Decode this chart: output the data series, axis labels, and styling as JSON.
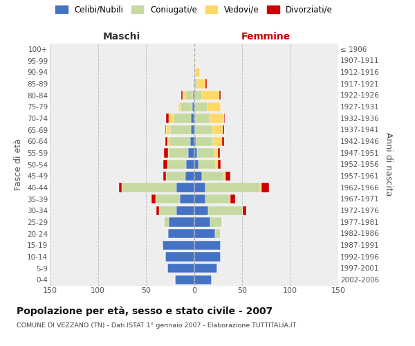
{
  "age_groups": [
    "0-4",
    "5-9",
    "10-14",
    "15-19",
    "20-24",
    "25-29",
    "30-34",
    "35-39",
    "40-44",
    "45-49",
    "50-54",
    "55-59",
    "60-64",
    "65-69",
    "70-74",
    "75-79",
    "80-84",
    "85-89",
    "90-94",
    "95-99",
    "100+"
  ],
  "birth_years": [
    "2002-2006",
    "1997-2001",
    "1992-1996",
    "1987-1991",
    "1982-1986",
    "1977-1981",
    "1972-1976",
    "1967-1971",
    "1962-1966",
    "1957-1961",
    "1952-1956",
    "1947-1951",
    "1942-1946",
    "1937-1941",
    "1932-1936",
    "1927-1931",
    "1922-1926",
    "1917-1921",
    "1912-1916",
    "1907-1911",
    "≤ 1906"
  ],
  "maschi_celibi": [
    20,
    28,
    30,
    33,
    27,
    26,
    18,
    15,
    18,
    9,
    8,
    6,
    4,
    3,
    3,
    2,
    1,
    0,
    0,
    0,
    0
  ],
  "maschi_coniugati": [
    0,
    0,
    0,
    0,
    1,
    5,
    18,
    25,
    57,
    20,
    20,
    20,
    22,
    22,
    18,
    12,
    8,
    1,
    0,
    0,
    0
  ],
  "maschi_vedovi": [
    0,
    0,
    0,
    0,
    0,
    0,
    0,
    0,
    0,
    0,
    0,
    1,
    2,
    4,
    5,
    2,
    3,
    0,
    0,
    0,
    0
  ],
  "maschi_divorziati": [
    0,
    0,
    0,
    0,
    0,
    0,
    3,
    4,
    3,
    3,
    4,
    4,
    2,
    1,
    3,
    0,
    1,
    0,
    0,
    0,
    0
  ],
  "femmine_nubili": [
    18,
    24,
    28,
    28,
    22,
    17,
    15,
    12,
    12,
    8,
    5,
    3,
    2,
    1,
    0,
    0,
    0,
    0,
    0,
    0,
    0
  ],
  "femmine_coniugate": [
    0,
    0,
    0,
    0,
    6,
    12,
    36,
    26,
    57,
    23,
    18,
    18,
    18,
    18,
    17,
    14,
    8,
    3,
    1,
    0,
    0
  ],
  "femmine_vedove": [
    0,
    0,
    0,
    0,
    0,
    0,
    0,
    0,
    1,
    2,
    2,
    4,
    9,
    11,
    14,
    14,
    18,
    9,
    5,
    1,
    0
  ],
  "femmine_divorziate": [
    0,
    0,
    0,
    0,
    0,
    0,
    3,
    5,
    8,
    5,
    3,
    2,
    2,
    1,
    1,
    0,
    2,
    1,
    0,
    0,
    0
  ],
  "color_celibi": "#4472c4",
  "color_coniugati": "#c5d9a0",
  "color_vedovi": "#ffd966",
  "color_divorziati": "#cc0000",
  "title": "Popolazione per età, sesso e stato civile - 2007",
  "subtitle": "COMUNE DI VEZZANO (TN) - Dati ISTAT 1° gennaio 2007 - Elaborazione TUTTITALIA.IT",
  "legend_labels": [
    "Celibi/Nubili",
    "Coniugati/e",
    "Vedovi/e",
    "Divorziati/e"
  ],
  "xlim": 150,
  "bg_color": "#eeeeee"
}
